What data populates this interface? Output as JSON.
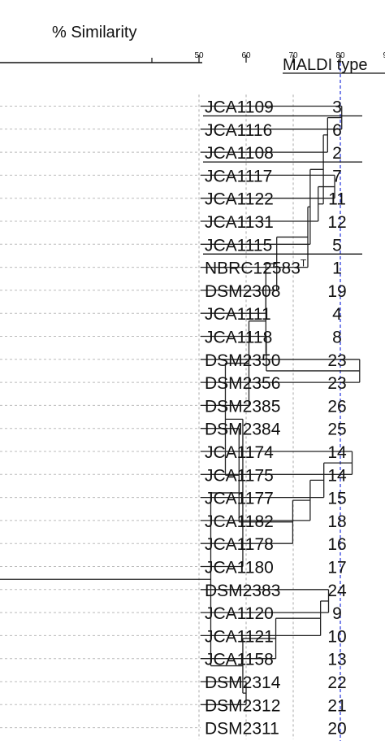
{
  "title": "% Similarity",
  "axis": {
    "ticks": [
      "50",
      "60",
      "70",
      "80",
      "90"
    ],
    "cutoff": 80
  },
  "maldi_header": "MALDI type",
  "rows": [
    {
      "strain": "JCA1109",
      "sup": "",
      "type": "3"
    },
    {
      "strain": "JCA1116",
      "sup": "",
      "type": "6"
    },
    {
      "strain": "JCA1108",
      "sup": "",
      "type": "2"
    },
    {
      "strain": "JCA1117",
      "sup": "",
      "type": "7"
    },
    {
      "strain": "JCA1122",
      "sup": "",
      "type": "11"
    },
    {
      "strain": "JCA1131",
      "sup": "",
      "type": "12"
    },
    {
      "strain": "JCA1115",
      "sup": "",
      "type": "5"
    },
    {
      "strain": "NBRC12583",
      "sup": "T",
      "type": "1"
    },
    {
      "strain": "DSM2308",
      "sup": "",
      "type": "19"
    },
    {
      "strain": "JCA1111",
      "sup": "",
      "type": "4"
    },
    {
      "strain": "JCA1118",
      "sup": "",
      "type": "8"
    },
    {
      "strain": "DSM2350",
      "sup": "",
      "type": "23"
    },
    {
      "strain": "DSM2356",
      "sup": "",
      "type": "23"
    },
    {
      "strain": "DSM2385",
      "sup": "",
      "type": "26"
    },
    {
      "strain": "DSM2384",
      "sup": "",
      "type": "25"
    },
    {
      "strain": "JCA1174",
      "sup": "",
      "type": "14"
    },
    {
      "strain": "JCA1175",
      "sup": "",
      "type": "14"
    },
    {
      "strain": "JCA1177",
      "sup": "",
      "type": "15"
    },
    {
      "strain": "JCA1182",
      "sup": "",
      "type": "18"
    },
    {
      "strain": "JCA1178",
      "sup": "",
      "type": "16"
    },
    {
      "strain": "JCA1180",
      "sup": "",
      "type": "17"
    },
    {
      "strain": "DSM2383",
      "sup": "",
      "type": "24"
    },
    {
      "strain": "JCA1120",
      "sup": "",
      "type": "9"
    },
    {
      "strain": "JCA1121",
      "sup": "",
      "type": "10"
    },
    {
      "strain": "JCA1158",
      "sup": "",
      "type": "13"
    },
    {
      "strain": "DSM2314",
      "sup": "",
      "type": "22"
    },
    {
      "strain": "DSM2312",
      "sup": "",
      "type": "21"
    },
    {
      "strain": "DSM2311",
      "sup": "",
      "type": "20"
    }
  ],
  "tree": {
    "id": "root",
    "s": 59.3,
    "children": [
      {
        "id": "A",
        "s": 55.6,
        "children": [
          {
            "id": "A1",
            "s": 60.6,
            "children": [
              {
                "id": "A1a",
                "s": 64.2,
                "children": [
                  {
                    "id": "A1a1",
                    "s": 64.2,
                    "children": [
                      {
                        "id": "A1a1a",
                        "s": 66.5,
                        "children": [
                          {
                            "id": "A1a1a1",
                            "s": 73.1,
                            "children": [
                              {
                                "id": "A1a1a1a",
                                "s": 73.6,
                                "children": [
                                  {
                                    "id": "A1a1a1a1",
                                    "s": 76.4,
                                    "children": [
                                      {
                                        "id": "A1a1a1a1a",
                                        "s": 77.3,
                                        "children": [
                                          {
                                            "id": "A1a1a1a1a1",
                                            "s": 80.3,
                                            "children": [
                                              {
                                                "leaf": 0
                                              },
                                              {
                                                "leaf": 1
                                              }
                                            ]
                                          },
                                          {
                                            "leaf": 2
                                          }
                                        ]
                                      },
                                      {
                                        "id": "A1a1a1a1b",
                                        "s": 75.3,
                                        "children": [
                                          {
                                            "id": "A1a1a1a1b1",
                                            "s": 78.8,
                                            "children": [
                                              {
                                                "leaf": 3
                                              },
                                              {
                                                "leaf": 4
                                              }
                                            ]
                                          },
                                          {
                                            "leaf": 5
                                          }
                                        ]
                                      }
                                    ]
                                  },
                                  {
                                    "leaf": 6
                                  }
                                ]
                              },
                              {
                                "leaf": 7
                              }
                            ]
                          },
                          {
                            "leaf": 8
                          }
                        ]
                      },
                      {
                        "leaf": 9
                      }
                    ]
                  },
                  {
                    "id": "A1a2",
                    "s": 64.3,
                    "children": [
                      {
                        "leaf": 10
                      },
                      {
                        "id": "A1a2b",
                        "s": 84.1,
                        "children": [
                          {
                            "leaf": 11
                          },
                          {
                            "leaf": 12
                          }
                        ]
                      }
                    ]
                  }
                ]
              },
              {
                "leaf": 13
              }
            ]
          },
          {
            "id": "A2",
            "s": 58.5,
            "children": [
              {
                "leaf": 14
              },
              {
                "id": "A2b",
                "s": 69.9,
                "children": [
                  {
                    "id": "A2b1",
                    "s": 73.6,
                    "children": [
                      {
                        "id": "A2b1a",
                        "s": 76.5,
                        "children": [
                          {
                            "id": "A2b1a1",
                            "s": 82.5,
                            "children": [
                              {
                                "leaf": 15
                              },
                              {
                                "leaf": 16
                              }
                            ]
                          },
                          {
                            "leaf": 17
                          }
                        ]
                      },
                      {
                        "leaf": 18
                      }
                    ]
                  },
                  {
                    "leaf": 19
                  }
                ]
              }
            ]
          }
        ]
      },
      {
        "leaf": 20
      }
    ],
    "_note": ""
  },
  "tree2": {
    "id": "B",
    "s": 59.3,
    "children": [
      {
        "id": "B1",
        "s": 66.3,
        "children": [
          {
            "id": "B1a",
            "s": 75.8,
            "children": [
              {
                "id": "B1a1",
                "s": 77.5,
                "children": [
                  {
                    "leaf": 21
                  },
                  {
                    "leaf": 22
                  }
                ]
              },
              {
                "leaf": 23
              }
            ]
          },
          {
            "leaf": 24
          }
        ]
      },
      {
        "id": "B2",
        "s": 60.0,
        "children": [
          {
            "leaf": 25
          },
          {
            "leaf": 26
          }
        ]
      }
    ]
  }
}
